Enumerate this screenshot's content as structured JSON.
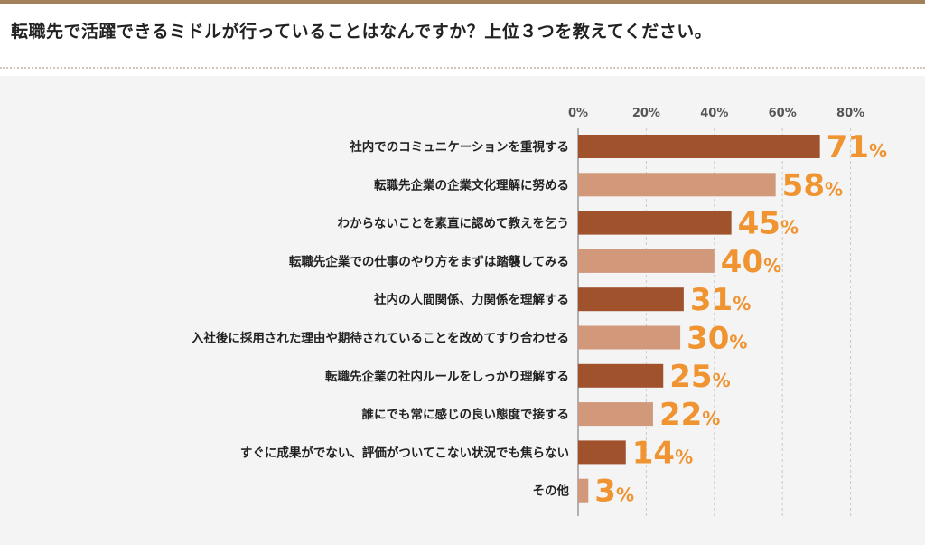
{
  "question": "転職先で活躍できるミドルが行っていることはなんですか？上位３つを教えてください。",
  "colors": {
    "dark_bar": "#a0522d",
    "light_bar": "#d1987a",
    "value_label": "#ef9431",
    "top_rule": "#a2805c"
  },
  "chart_data": {
    "type": "bar",
    "orientation": "horizontal",
    "title": "",
    "xlabel": "",
    "ylabel": "",
    "xlim": [
      0,
      80
    ],
    "ticks": [
      "0%",
      "20%",
      "40%",
      "60%",
      "80%"
    ],
    "tick_values": [
      0,
      20,
      40,
      60,
      80
    ],
    "grid": true,
    "legend": "none",
    "categories": [
      "社内でのコミュニケーションを重視する",
      "転職先企業の企業文化理解に努める",
      "わからないことを素直に認めて教えを乞う",
      "転職先企業での仕事のやり方をまずは踏襲してみる",
      "社内の人間関係、力関係を理解する",
      "入社後に採用された理由や期待されていることを改めてすり合わせる",
      "転職先企業の社内ルールをしっかり理解する",
      "誰にでも常に感じの良い態度で接する",
      "すぐに成果がでない、評価がついてこない状況でも焦らない",
      "その他"
    ],
    "values": [
      71,
      58,
      45,
      40,
      31,
      30,
      25,
      22,
      14,
      3
    ],
    "value_numbers": [
      "71",
      "58",
      "45",
      "40",
      "31",
      "30",
      "25",
      "22",
      "14",
      "3"
    ],
    "value_unit": "%"
  }
}
